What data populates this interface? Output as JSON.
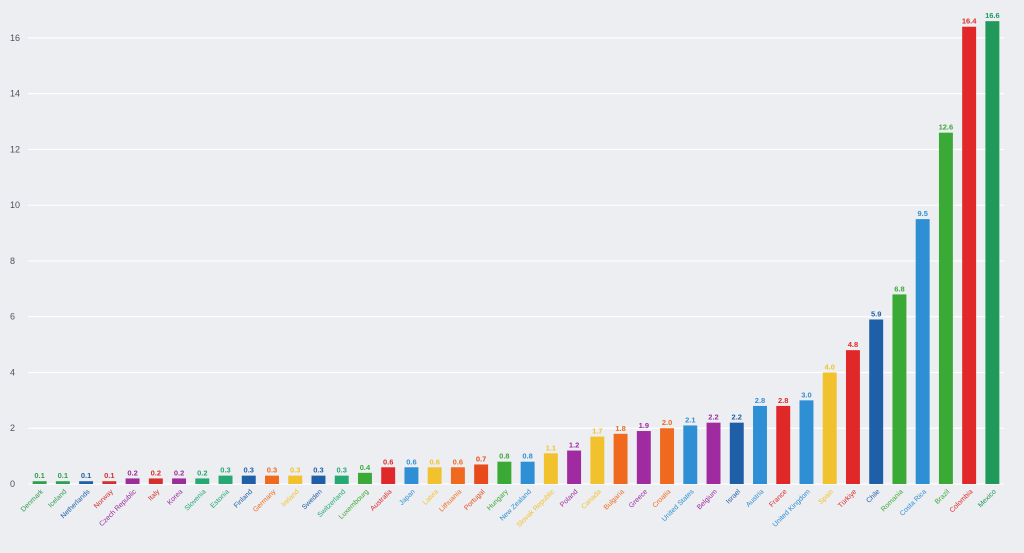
{
  "chart_data": {
    "type": "bar",
    "title": "",
    "xlabel": "",
    "ylabel": "",
    "ylim": [
      0,
      17
    ],
    "yticks": [
      0,
      2,
      4,
      6,
      8,
      10,
      12,
      14,
      16
    ],
    "grid": true,
    "legend": "none",
    "categories": [
      "Denmark",
      "Iceland",
      "Netherlands",
      "Norway",
      "Czech Republic",
      "Italy",
      "Korea",
      "Slovenia",
      "Estonia",
      "Finland",
      "Germany",
      "Ireland",
      "Sweden",
      "Switzerland",
      "Luxembourg",
      "Australia",
      "Japan",
      "Latvia",
      "Lithuania",
      "Portugal",
      "Hungary",
      "New Zealand",
      "Slovak Republic",
      "Poland",
      "Canada",
      "Bulgaria",
      "Greece",
      "Croatia",
      "United States",
      "Belgium",
      "Israel",
      "Austria",
      "France",
      "United Kingdom",
      "Spain",
      "Türkiye",
      "Chile",
      "Romania",
      "Costa Rica",
      "Brazil",
      "Colombia",
      "Mexico"
    ],
    "values": [
      0.1,
      0.1,
      0.1,
      0.1,
      0.2,
      0.2,
      0.2,
      0.2,
      0.3,
      0.3,
      0.3,
      0.3,
      0.3,
      0.3,
      0.4,
      0.6,
      0.6,
      0.6,
      0.6,
      0.7,
      0.8,
      0.8,
      1.1,
      1.2,
      1.7,
      1.8,
      1.9,
      2.0,
      2.1,
      2.2,
      2.2,
      2.8,
      2.8,
      3.0,
      4.0,
      4.8,
      5.9,
      6.8,
      9.5,
      12.6,
      16.4,
      16.6
    ],
    "value_labels": [
      "0.1",
      "0.1",
      "0.1",
      "0.1",
      "0.2",
      "0.2",
      "0.2",
      "0.2",
      "0.3",
      "0.3",
      "0.3",
      "0.3",
      "0.3",
      "0.3",
      "0.4",
      "0.6",
      "0.6",
      "0.6",
      "0.6",
      "0.7",
      "0.8",
      "0.8",
      "1.1",
      "1.2",
      "1.7",
      "1.8",
      "1.9",
      "2.0",
      "2.1",
      "2.2",
      "2.2",
      "2.8",
      "2.8",
      "3.0",
      "4.0",
      "4.8",
      "5.9",
      "6.8",
      "9.5",
      "12.6",
      "16.4",
      "16.6"
    ],
    "colors": [
      "#2e9e4f",
      "#2e9e4f",
      "#1f5fa8",
      "#d62f2f",
      "#9b2d9b",
      "#d62f2f",
      "#9b2d9b",
      "#25a871",
      "#25a871",
      "#1f5fa8",
      "#ef6a1e",
      "#f2c12e",
      "#1f5fa8",
      "#25a871",
      "#3aa935",
      "#e02828",
      "#2f8fd4",
      "#f2c12e",
      "#ef6a1e",
      "#e84a1c",
      "#3aa935",
      "#2f8fd4",
      "#f2c12e",
      "#a02ba0",
      "#f2c12e",
      "#ef6a1e",
      "#a02ba0",
      "#ef6a1e",
      "#2f8fd4",
      "#a02ba0",
      "#1f5fa8",
      "#2f8fd4",
      "#e02828",
      "#2f8fd4",
      "#f2c12e",
      "#e02828",
      "#1f5fa8",
      "#3aa935",
      "#2f8fd4",
      "#3aa935",
      "#e02828",
      "#1f9a5a"
    ]
  }
}
